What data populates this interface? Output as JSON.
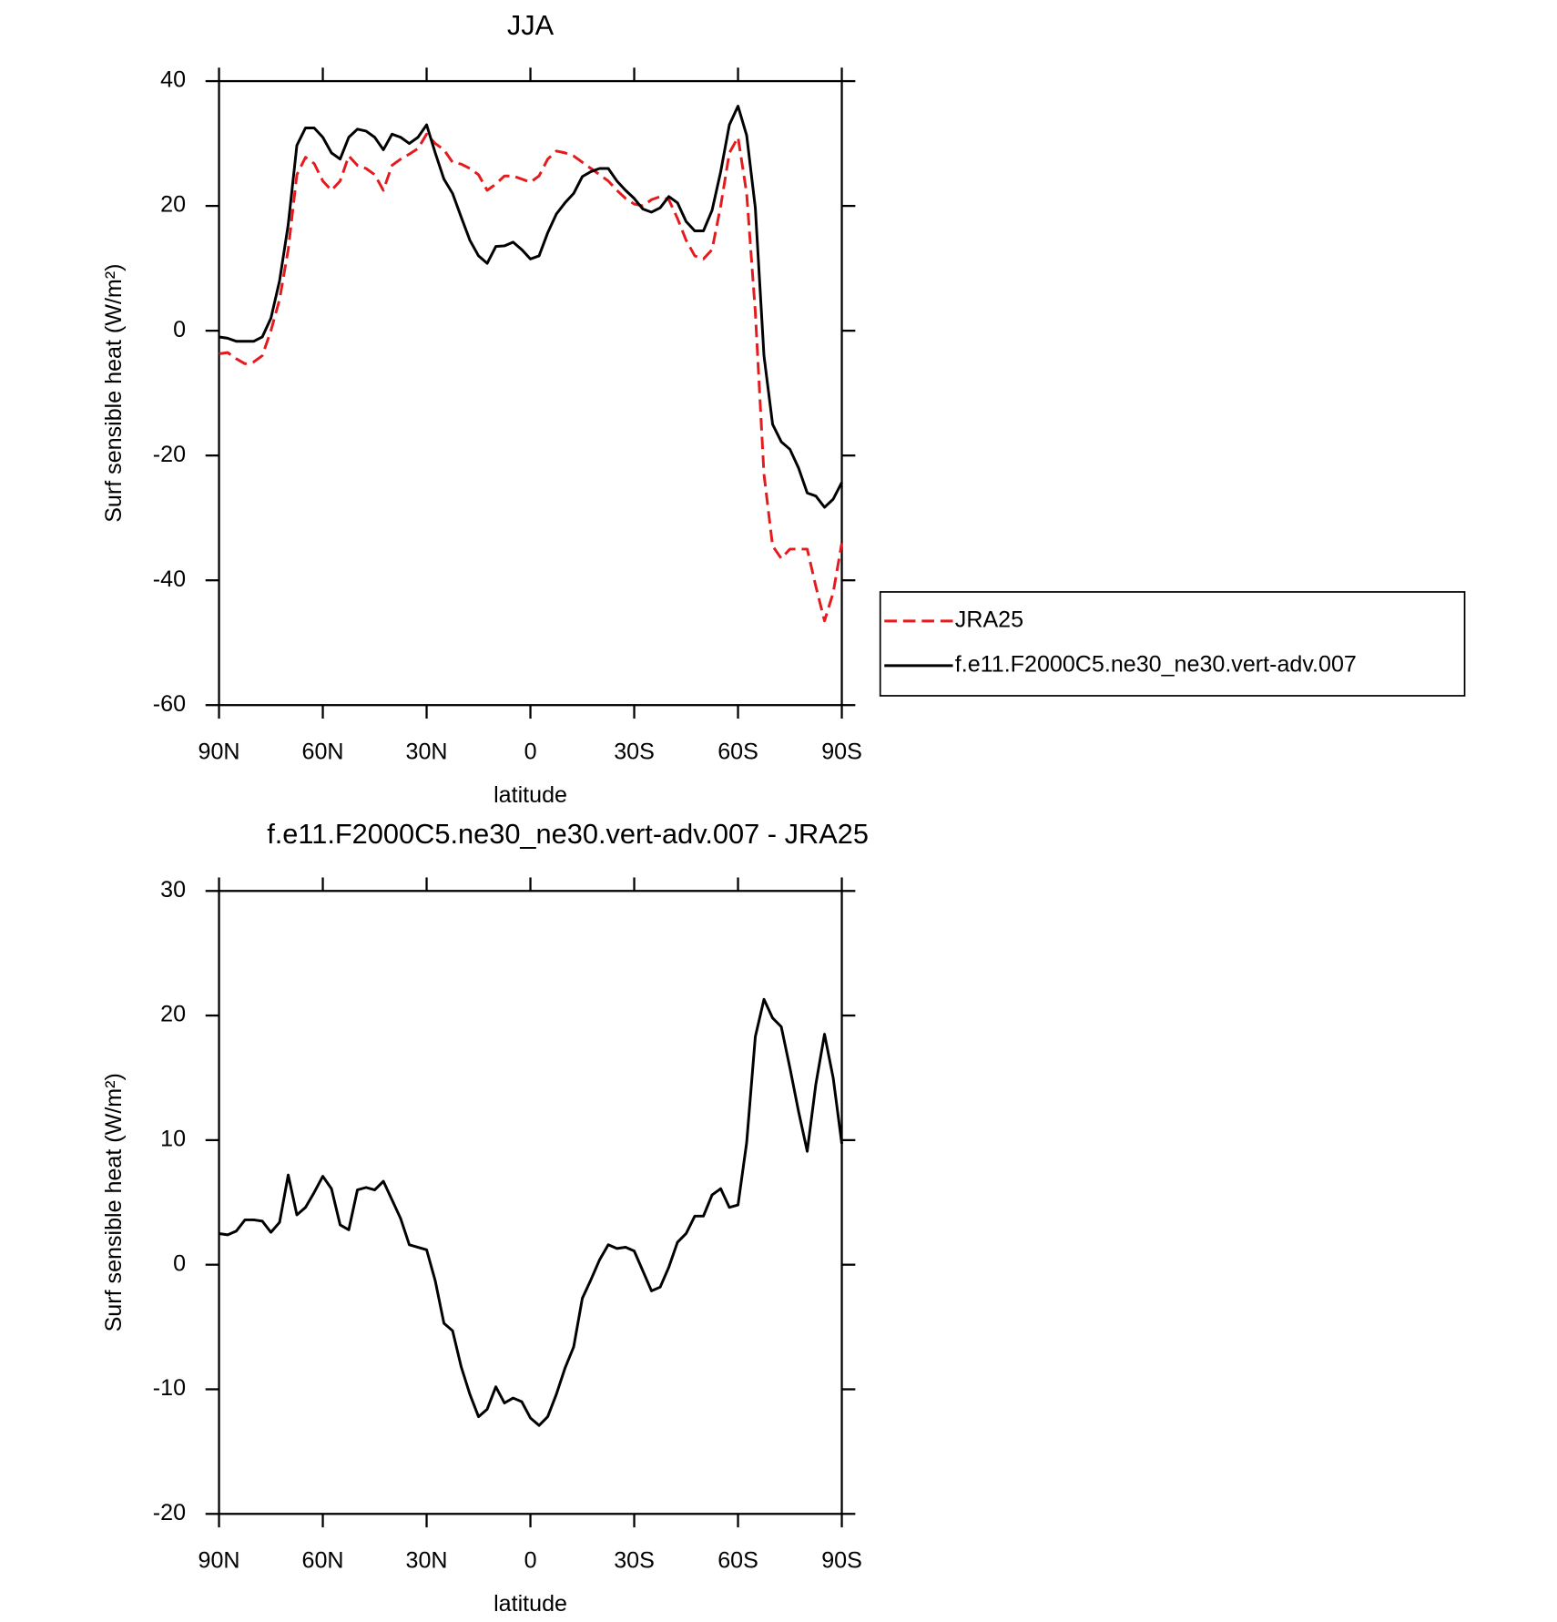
{
  "chart_data": [
    {
      "type": "line",
      "title": "JJA",
      "xlabel": "latitude",
      "ylabel": "Surf sensible heat (W/m²)",
      "x": [
        90,
        87.5,
        85,
        82.5,
        80,
        77.5,
        75,
        72.5,
        70,
        67.5,
        65,
        62.5,
        60,
        57.5,
        55,
        52.5,
        50,
        47.5,
        45,
        42.5,
        40,
        37.5,
        35,
        32.5,
        30,
        27.5,
        25,
        22.5,
        20,
        17.5,
        15,
        12.5,
        10,
        7.5,
        5,
        2.5,
        0,
        -2.5,
        -5,
        -7.5,
        -10,
        -12.5,
        -15,
        -17.5,
        -20,
        -22.5,
        -25,
        -27.5,
        -30,
        -32.5,
        -35,
        -37.5,
        -40,
        -42.5,
        -45,
        -47.5,
        -50,
        -52.5,
        -55,
        -57.5,
        -60,
        -62.5,
        -65,
        -67.5,
        -70,
        -72.5,
        -75,
        -77.5,
        -80,
        -82.5,
        -85,
        -87.5,
        -90
      ],
      "series": [
        {
          "name": "JRA25",
          "color": "#e41a1c",
          "dashed": true,
          "values": [
            -3.7,
            -3.5,
            -4.5,
            -5.3,
            -5,
            -4,
            0,
            5,
            13,
            25,
            27.8,
            26.8,
            24,
            22.5,
            24,
            28,
            26.5,
            26,
            25,
            22.5,
            26.5,
            27.5,
            28.3,
            29.2,
            31.5,
            30,
            29,
            27,
            26.7,
            26,
            25,
            22.5,
            23.5,
            24.8,
            24.8,
            24.3,
            23.8,
            24.8,
            27.5,
            28.8,
            28.5,
            28,
            27,
            26,
            25,
            24,
            22.5,
            21.2,
            20.3,
            20,
            21,
            21.5,
            21,
            18,
            14.5,
            12,
            11.5,
            13,
            20,
            28.5,
            31,
            22,
            3,
            -23,
            -34.5,
            -36.5,
            -35,
            -35,
            -35,
            -41,
            -46.5,
            -42,
            -34
          ]
        },
        {
          "name": "f.e11.F2000C5.ne30_ne30.vert-adv.007",
          "color": "#000000",
          "dashed": false,
          "values": [
            -1,
            -1.2,
            -1.7,
            -1.7,
            -1.7,
            -1,
            2,
            8,
            17,
            29.7,
            32.5,
            32.5,
            31,
            28.5,
            27.5,
            31,
            32.3,
            32,
            31,
            29,
            31.5,
            31,
            30,
            31,
            33,
            28.5,
            24.3,
            22,
            18.2,
            14.5,
            12,
            10.8,
            13.5,
            13.6,
            14.2,
            13,
            11.5,
            12,
            15.7,
            18.7,
            20.5,
            22,
            24.7,
            25.5,
            26,
            26,
            24,
            22.5,
            21.2,
            19.5,
            19,
            19.7,
            21.5,
            20.5,
            17.5,
            16,
            16,
            19.3,
            25.5,
            33,
            36,
            31.3,
            19.7,
            -4,
            -15,
            -17.8,
            -19,
            -22,
            -26,
            -26.5,
            -28.3,
            -27,
            -24.3
          ]
        }
      ],
      "xlim": [
        90,
        -90
      ],
      "xticks": [
        {
          "value": 90,
          "label": "90N"
        },
        {
          "value": 60,
          "label": "60N"
        },
        {
          "value": 30,
          "label": "30N"
        },
        0,
        {
          "value": -30,
          "label": "30S"
        },
        {
          "value": -60,
          "label": "60S"
        },
        {
          "value": -90,
          "label": "90S"
        }
      ],
      "ylim": [
        -60,
        40
      ],
      "yticks": [
        -60,
        -40,
        -20,
        0,
        20,
        40
      ],
      "legend": "right"
    },
    {
      "type": "line",
      "title": "f.e11.F2000C5.ne30_ne30.vert-adv.007 - JRA25",
      "xlabel": "latitude",
      "ylabel": "Surf sensible heat (W/m²)",
      "x": [
        90,
        87.5,
        85,
        82.5,
        80,
        77.5,
        75,
        72.5,
        70,
        67.5,
        65,
        62.5,
        60,
        57.5,
        55,
        52.5,
        50,
        47.5,
        45,
        42.5,
        40,
        37.5,
        35,
        32.5,
        30,
        27.5,
        25,
        22.5,
        20,
        17.5,
        15,
        12.5,
        10,
        7.5,
        5,
        2.5,
        0,
        -2.5,
        -5,
        -7.5,
        -10,
        -12.5,
        -15,
        -17.5,
        -20,
        -22.5,
        -25,
        -27.5,
        -30,
        -32.5,
        -35,
        -37.5,
        -40,
        -42.5,
        -45,
        -47.5,
        -50,
        -52.5,
        -55,
        -57.5,
        -60,
        -62.5,
        -65,
        -67.5,
        -70,
        -72.5,
        -75,
        -77.5,
        -80,
        -82.5,
        -85,
        -87.5,
        -90
      ],
      "values": [
        2.5,
        2.4,
        2.7,
        3.6,
        3.6,
        3.5,
        2.6,
        3.4,
        7.2,
        4,
        4.6,
        5.8,
        7.1,
        6.1,
        3.2,
        2.8,
        6,
        6.2,
        6,
        6.7,
        5.2,
        3.7,
        1.6,
        1.4,
        1.2,
        -1.3,
        -4.7,
        -5.3,
        -8.2,
        -10.4,
        -12.2,
        -11.6,
        -9.8,
        -11.1,
        -10.7,
        -11,
        -12.3,
        -12.9,
        -12.2,
        -10.4,
        -8.3,
        -6.6,
        -2.7,
        -1.2,
        0.4,
        1.6,
        1.3,
        1.4,
        1.1,
        -0.5,
        -2.1,
        -1.8,
        -0.2,
        1.8,
        2.5,
        3.9,
        3.9,
        5.6,
        6.1,
        4.6,
        4.8,
        9.8,
        18.3,
        21.3,
        19.8,
        19.1,
        15.8,
        12.3,
        9.1,
        14.5,
        18.5,
        15,
        9.7
      ],
      "color": "#000000",
      "xlim": [
        90,
        -90
      ],
      "xticks": [
        {
          "value": 90,
          "label": "90N"
        },
        {
          "value": 60,
          "label": "60N"
        },
        {
          "value": 30,
          "label": "30N"
        },
        0,
        {
          "value": -30,
          "label": "30S"
        },
        {
          "value": -60,
          "label": "60S"
        },
        {
          "value": -90,
          "label": "90S"
        }
      ],
      "ylim": [
        -20,
        30
      ],
      "yticks": [
        -20,
        -10,
        0,
        10,
        20,
        30
      ]
    }
  ]
}
